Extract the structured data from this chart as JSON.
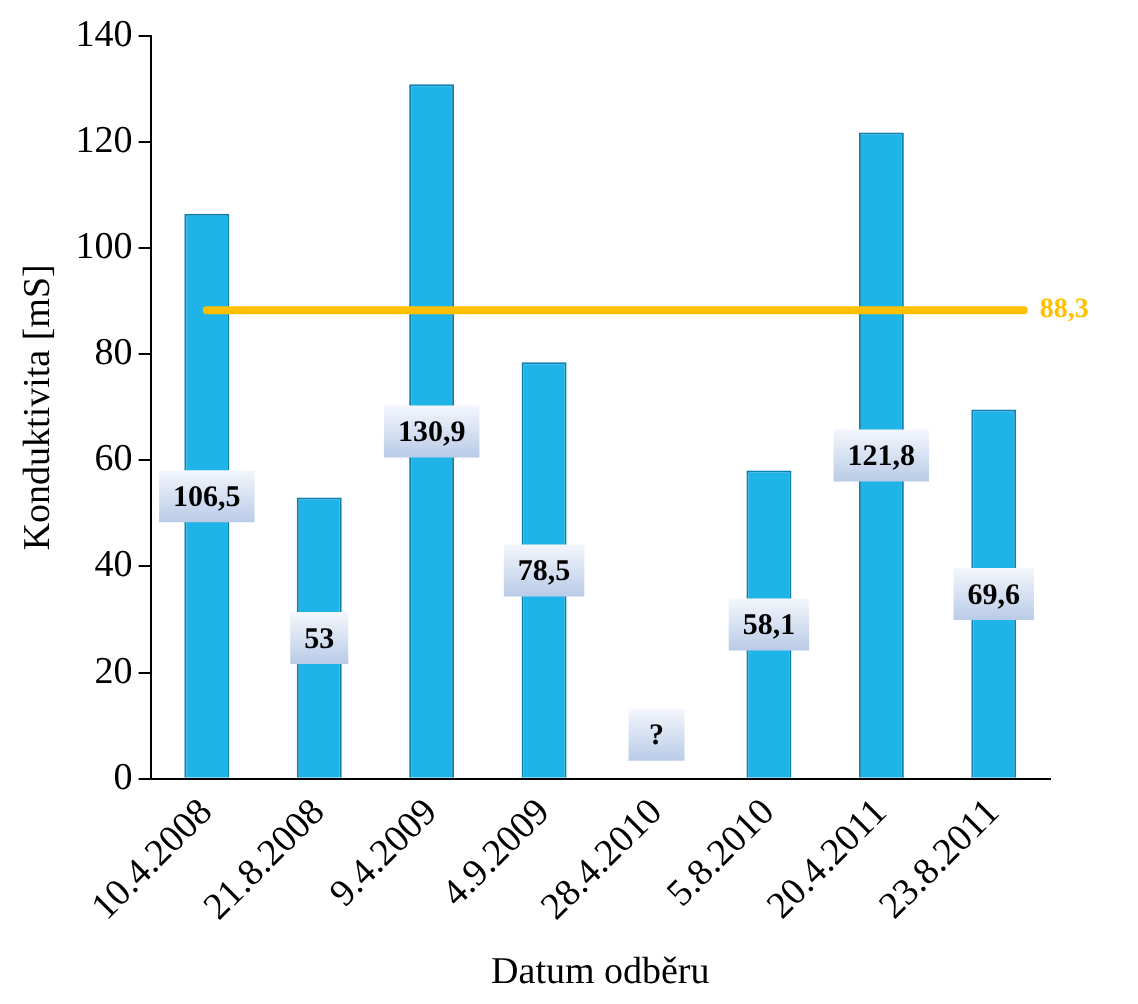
{
  "chart_data": {
    "type": "bar",
    "xlabel": "Datum odběru",
    "ylabel": "Konduktivita [mS]",
    "categories": [
      "10.4.2008",
      "21.8.2008",
      "9.4.2009",
      "4.9.2009",
      "28.4.2010",
      "5.8.2010",
      "20.4.2011",
      "23.8.2011"
    ],
    "values": [
      106.5,
      53,
      130.9,
      78.5,
      null,
      58.1,
      121.8,
      69.6
    ],
    "value_labels": [
      "106,5",
      "53",
      "130,9",
      "78,5",
      "?",
      "58,1",
      "121,8",
      "69,6"
    ],
    "color": "#1fb4e8",
    "ylim": [
      0,
      140
    ],
    "yticks": [
      0,
      20,
      40,
      60,
      80,
      100,
      120,
      140
    ],
    "grid": false,
    "legend": false,
    "ref_lines": [
      {
        "axis": "y",
        "value": 88.3,
        "label": "88,3",
        "color": "#ffc000"
      }
    ]
  }
}
